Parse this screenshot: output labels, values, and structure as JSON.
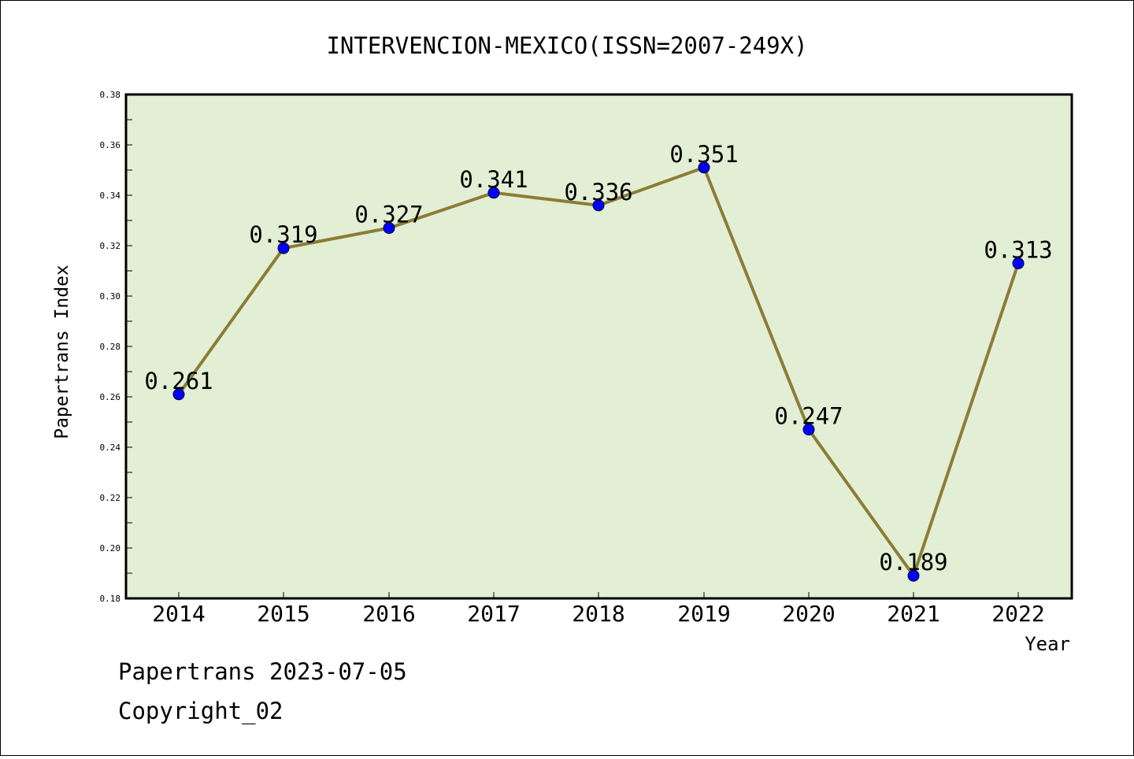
{
  "chart_data": {
    "type": "line",
    "title": "INTERVENCION-MEXICO(ISSN=2007-249X)",
    "xlabel": "Year",
    "ylabel": "Papertrans Index",
    "categories": [
      "2014",
      "2015",
      "2016",
      "2017",
      "2018",
      "2019",
      "2020",
      "2021",
      "2022"
    ],
    "series": [
      {
        "values": [
          0.261,
          0.319,
          0.327,
          0.341,
          0.336,
          0.351,
          0.247,
          0.189,
          0.313
        ],
        "labels": [
          "0.261",
          "0.319",
          "0.327",
          "0.341",
          "0.336",
          "0.351",
          "0.247",
          "0.189",
          "0.313"
        ]
      }
    ],
    "ylim": [
      0.18,
      0.38
    ],
    "yticks": [
      "0.18",
      "0.20",
      "0.22",
      "0.24",
      "0.26",
      "0.28",
      "0.30",
      "0.32",
      "0.34",
      "0.36",
      "0.38"
    ],
    "grid": false,
    "colors": {
      "plot_background": "#e2efd4",
      "line": "#8b7d35",
      "marker": "#0000ff"
    }
  },
  "footer": {
    "date_line": "Papertrans 2023-07-05",
    "copyright": "Copyright_02"
  }
}
